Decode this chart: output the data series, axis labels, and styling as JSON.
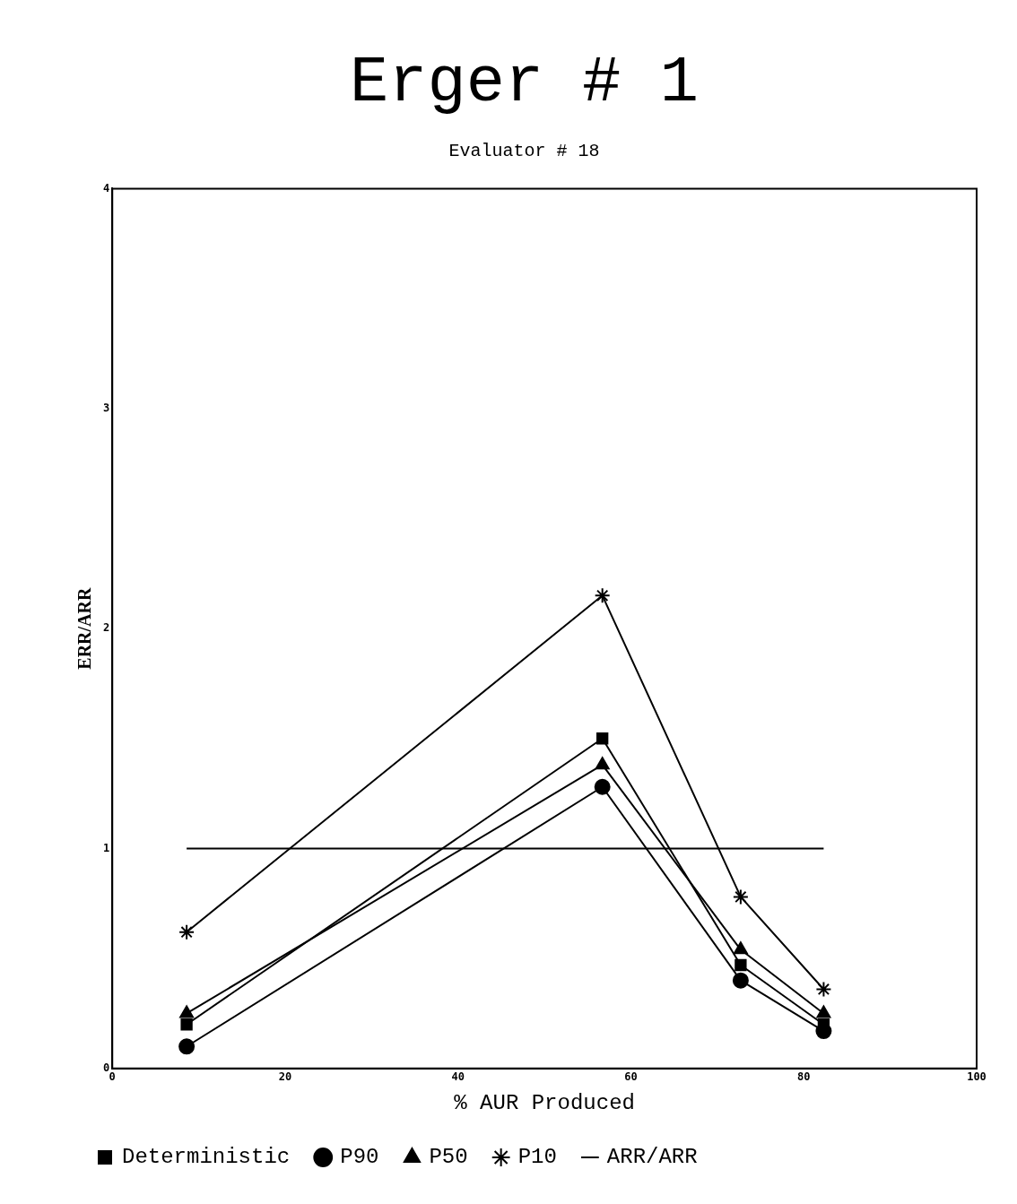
{
  "chart_data": {
    "type": "line",
    "title": "Erger # 1",
    "subtitle": "Evaluator # 18",
    "xlabel": "% AUR Produced",
    "ylabel": "ERR/ARR",
    "x": [
      8.6,
      56.7,
      72.7,
      82.3
    ],
    "series": [
      {
        "name": "Deterministic",
        "color": "#000000",
        "marker": "square",
        "values": [
          0.2,
          1.5,
          0.47,
          0.2
        ]
      },
      {
        "name": "P90",
        "color": "#000000",
        "marker": "circle",
        "values": [
          0.1,
          1.28,
          0.4,
          0.17
        ]
      },
      {
        "name": "P50",
        "color": "#000000",
        "marker": "triangle",
        "values": [
          0.25,
          1.38,
          0.54,
          0.25
        ]
      },
      {
        "name": "P10",
        "color": "#000000",
        "marker": "cross",
        "values": [
          0.62,
          2.15,
          0.78,
          0.36
        ]
      },
      {
        "name": "ARR/ARR",
        "color": "#000000",
        "marker": "none",
        "x": [
          8.6,
          82.3
        ],
        "values": [
          1,
          1
        ]
      }
    ],
    "xlim": [
      0,
      100
    ],
    "xticks": [
      0,
      20,
      40,
      60,
      80,
      100
    ],
    "ylim": [
      0,
      4
    ],
    "yticks": [
      0,
      1,
      2,
      3,
      4
    ],
    "grid": false,
    "legend": "bottom",
    "line_style": "solid"
  }
}
